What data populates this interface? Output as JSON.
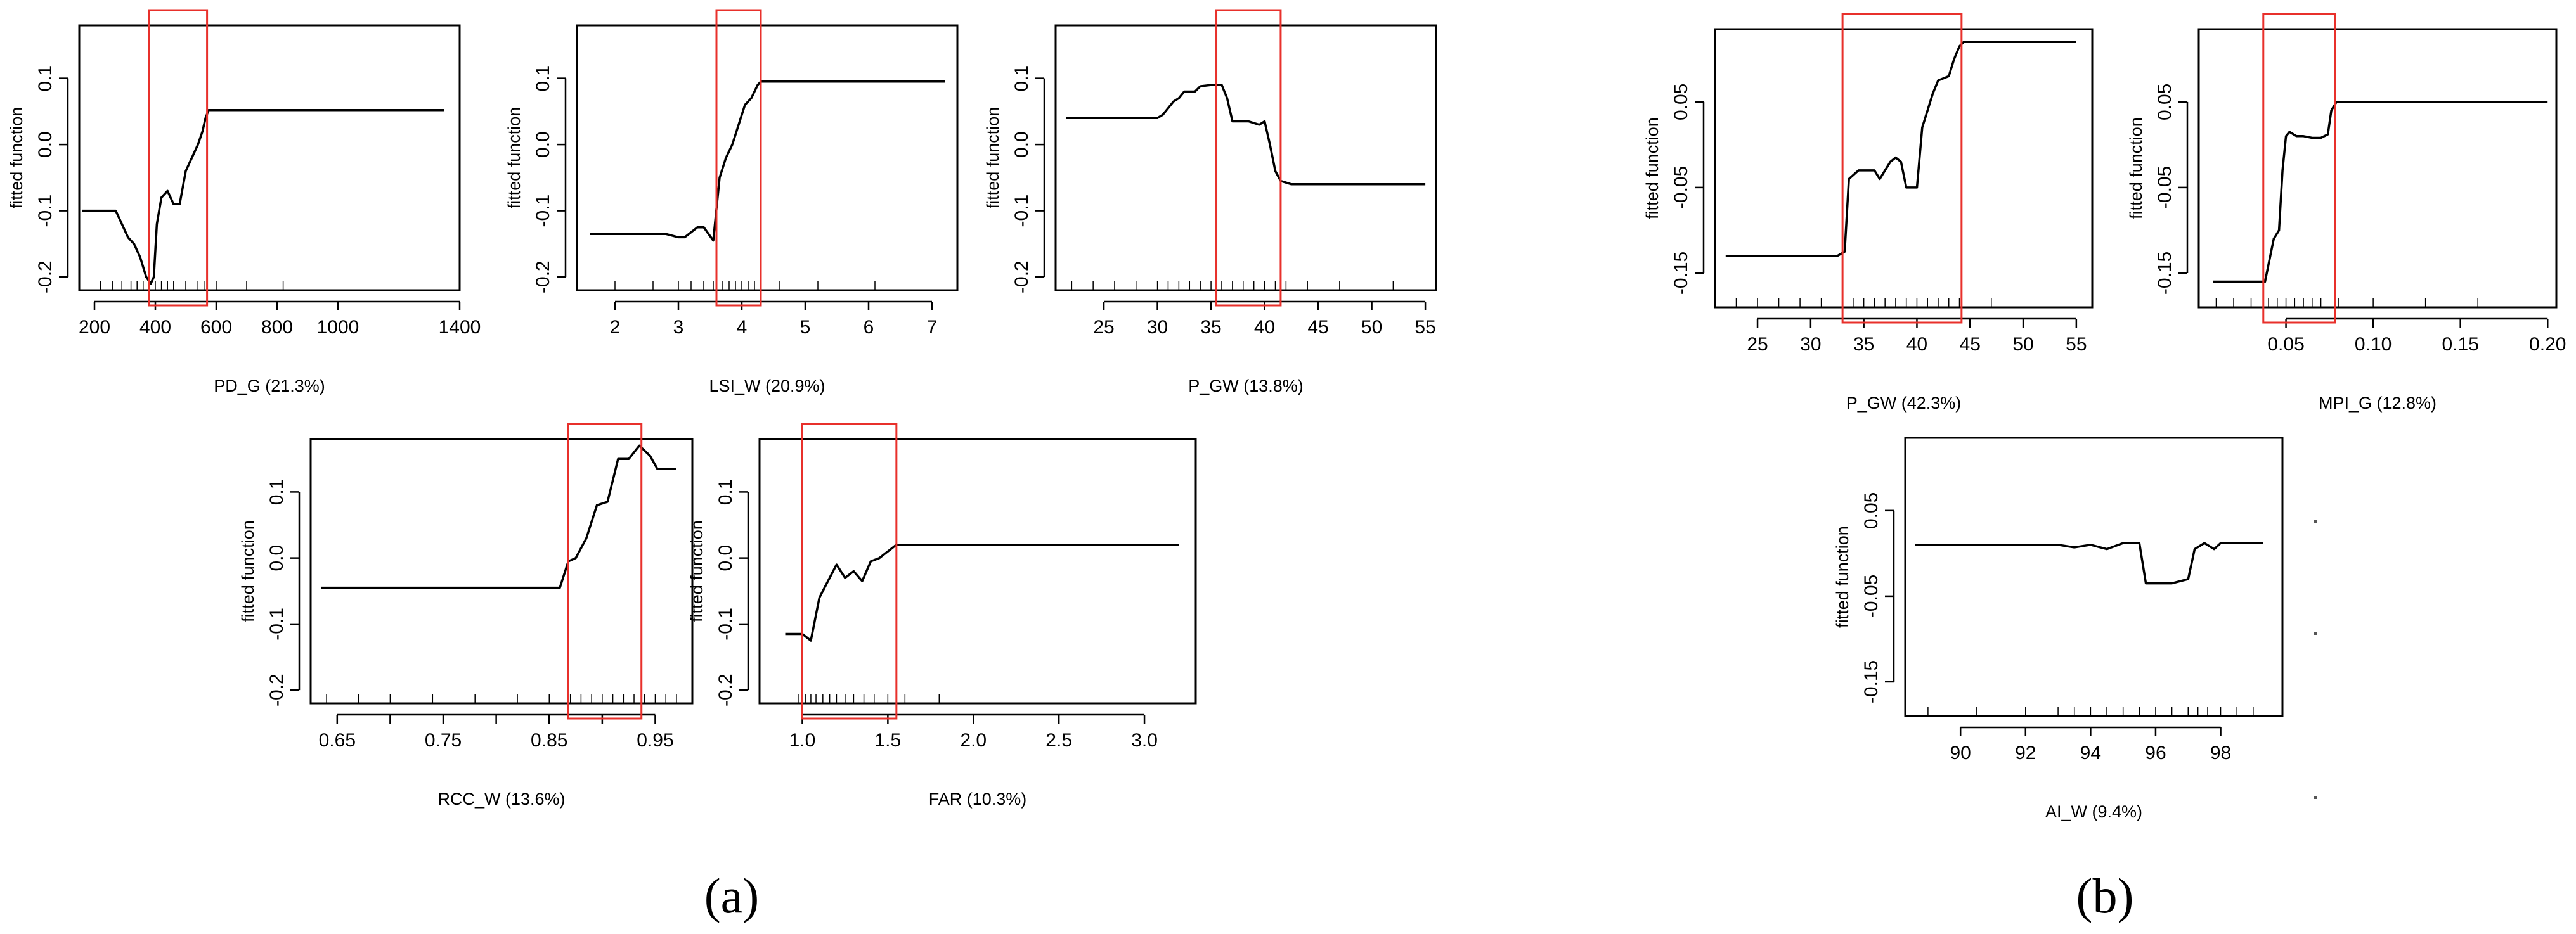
{
  "chart_data": [
    {
      "type": "line",
      "panel": "a",
      "xlabel": "PD_G  (21.3%)",
      "ylabel": "fitted function",
      "xlim": [
        150,
        1400
      ],
      "ylim": [
        -0.22,
        0.18
      ],
      "xticks": [
        200,
        400,
        600,
        800,
        1000,
        1400
      ],
      "yticks": [
        -0.2,
        -0.1,
        0.0,
        0.1
      ],
      "highlight_x": [
        380,
        570
      ],
      "x": [
        160,
        250,
        270,
        290,
        310,
        330,
        350,
        370,
        385,
        395,
        405,
        420,
        440,
        460,
        480,
        500,
        520,
        540,
        555,
        565,
        575,
        600,
        1350
      ],
      "y": [
        -0.1,
        -0.1,
        -0.1,
        -0.12,
        -0.14,
        -0.15,
        -0.17,
        -0.2,
        -0.21,
        -0.2,
        -0.12,
        -0.08,
        -0.07,
        -0.09,
        -0.09,
        -0.04,
        -0.02,
        0.0,
        0.02,
        0.04,
        0.052,
        0.052,
        0.052
      ],
      "rug": [
        220,
        260,
        290,
        320,
        340,
        360,
        380,
        400,
        420,
        440,
        460,
        500,
        540,
        560,
        600,
        700,
        820
      ]
    },
    {
      "type": "line",
      "panel": "a",
      "xlabel": "LSI_W  (20.9%)",
      "ylabel": "fitted function",
      "xlim": [
        1.4,
        7.4
      ],
      "ylim": [
        -0.22,
        0.18
      ],
      "xticks": [
        2,
        3,
        4,
        5,
        6,
        7
      ],
      "yticks": [
        -0.2,
        -0.1,
        0.0,
        0.1
      ],
      "highlight_x": [
        3.6,
        4.3
      ],
      "x": [
        1.6,
        2.8,
        3.0,
        3.1,
        3.3,
        3.4,
        3.55,
        3.65,
        3.75,
        3.85,
        3.95,
        4.05,
        4.15,
        4.25,
        4.3,
        7.2
      ],
      "y": [
        -0.135,
        -0.135,
        -0.14,
        -0.14,
        -0.125,
        -0.125,
        -0.145,
        -0.05,
        -0.02,
        0.0,
        0.03,
        0.06,
        0.07,
        0.09,
        0.095,
        0.095
      ],
      "rug": [
        2.0,
        2.6,
        3.0,
        3.2,
        3.4,
        3.55,
        3.7,
        3.8,
        3.9,
        4.0,
        4.1,
        4.2,
        4.3,
        4.6,
        5.2,
        6.1
      ]
    },
    {
      "type": "line",
      "panel": "a",
      "xlabel": "P_GW  (13.8%)",
      "ylabel": "fitted function",
      "xlim": [
        20.5,
        56
      ],
      "ylim": [
        -0.22,
        0.18
      ],
      "xticks": [
        25,
        30,
        35,
        40,
        45,
        50,
        55
      ],
      "yticks": [
        -0.2,
        -0.1,
        0.0,
        0.1
      ],
      "highlight_x": [
        35.5,
        41.5
      ],
      "x": [
        21.5,
        30.0,
        30.5,
        31.5,
        32.0,
        32.5,
        33.5,
        34.0,
        35.0,
        36.0,
        36.5,
        37.0,
        38.5,
        39.5,
        40.0,
        40.5,
        41.0,
        41.5,
        42.5,
        55.0
      ],
      "y": [
        0.04,
        0.04,
        0.045,
        0.065,
        0.07,
        0.08,
        0.08,
        0.088,
        0.09,
        0.09,
        0.07,
        0.035,
        0.035,
        0.03,
        0.035,
        0.0,
        -0.04,
        -0.055,
        -0.06,
        -0.06
      ],
      "rug": [
        22,
        24,
        26,
        28,
        30,
        31,
        32,
        33,
        34,
        35,
        36,
        37,
        38,
        39,
        40,
        41,
        42,
        44,
        47,
        52
      ]
    },
    {
      "type": "line",
      "panel": "a",
      "xlabel": "RCC_W  (13.6%)",
      "ylabel": "fitted function",
      "xlim": [
        0.625,
        0.985
      ],
      "ylim": [
        -0.22,
        0.18
      ],
      "xticks": [
        0.65,
        0.75,
        0.85,
        0.95
      ],
      "xticklabels": [
        "0.65",
        "0.75",
        "0.85",
        "0.95"
      ],
      "xtick_minor": [
        0.7,
        0.8,
        0.9
      ],
      "yticks": [
        -0.2,
        -0.1,
        0.0,
        0.1
      ],
      "highlight_x": [
        0.868,
        0.937
      ],
      "x": [
        0.635,
        0.86,
        0.868,
        0.875,
        0.885,
        0.895,
        0.905,
        0.915,
        0.925,
        0.935,
        0.945,
        0.952,
        0.97
      ],
      "y": [
        -0.045,
        -0.045,
        -0.005,
        0.0,
        0.03,
        0.08,
        0.085,
        0.15,
        0.15,
        0.17,
        0.155,
        0.135,
        0.135
      ],
      "rug": [
        0.64,
        0.67,
        0.7,
        0.74,
        0.78,
        0.82,
        0.85,
        0.87,
        0.88,
        0.89,
        0.9,
        0.91,
        0.92,
        0.93,
        0.94,
        0.95,
        0.96,
        0.97
      ]
    },
    {
      "type": "line",
      "panel": "a",
      "xlabel": "FAR  (10.3%)",
      "ylabel": "fitted function",
      "xlim": [
        0.75,
        3.3
      ],
      "ylim": [
        -0.22,
        0.18
      ],
      "xticks": [
        1.0,
        1.5,
        2.0,
        2.5,
        3.0
      ],
      "xticklabels": [
        "1.0",
        "1.5",
        "2.0",
        "2.5",
        "3.0"
      ],
      "yticks": [
        -0.2,
        -0.1,
        0.0,
        0.1
      ],
      "highlight_x": [
        1.0,
        1.55
      ],
      "x": [
        0.9,
        1.0,
        1.05,
        1.1,
        1.15,
        1.2,
        1.25,
        1.3,
        1.35,
        1.4,
        1.45,
        1.5,
        1.55,
        3.2
      ],
      "y": [
        -0.115,
        -0.115,
        -0.125,
        -0.06,
        -0.035,
        -0.01,
        -0.03,
        -0.02,
        -0.035,
        -0.005,
        0.0,
        0.01,
        0.02,
        0.02
      ],
      "rug": [
        0.98,
        1.02,
        1.05,
        1.08,
        1.12,
        1.16,
        1.2,
        1.25,
        1.3,
        1.36,
        1.42,
        1.5,
        1.6,
        1.8
      ]
    },
    {
      "type": "line",
      "panel": "b",
      "xlabel": "P_GW  (42.3%)",
      "ylabel": "fitted function",
      "xlim": [
        21,
        56.5
      ],
      "ylim": [
        -0.19,
        0.135
      ],
      "xticks": [
        25,
        30,
        35,
        40,
        45,
        50,
        55
      ],
      "yticks": [
        -0.15,
        -0.05,
        0.05
      ],
      "highlight_x": [
        33.0,
        44.2
      ],
      "x": [
        22.0,
        32.5,
        33.2,
        33.6,
        34.5,
        36.0,
        36.5,
        37.5,
        38.0,
        38.5,
        39.0,
        40.0,
        40.5,
        41.5,
        42.0,
        43.0,
        43.5,
        44.0,
        44.4,
        55.0
      ],
      "y": [
        -0.13,
        -0.13,
        -0.125,
        -0.04,
        -0.03,
        -0.03,
        -0.04,
        -0.02,
        -0.015,
        -0.02,
        -0.05,
        -0.05,
        0.02,
        0.06,
        0.075,
        0.08,
        0.1,
        0.115,
        0.12,
        0.12
      ],
      "rug": [
        23,
        25,
        27,
        29,
        31,
        33,
        34,
        35,
        36,
        37,
        38,
        39,
        40,
        41,
        42,
        43,
        44,
        47
      ]
    },
    {
      "type": "line",
      "panel": "b",
      "xlabel": "MPI_G  (12.8%)",
      "ylabel": "fitted function",
      "xlim": [
        0.0,
        0.205
      ],
      "ylim": [
        -0.19,
        0.135
      ],
      "xticks": [
        0.05,
        0.1,
        0.15,
        0.2
      ],
      "xticklabels": [
        "0.05",
        "0.10",
        "0.15",
        "0.20"
      ],
      "yticks": [
        -0.15,
        -0.05,
        0.05
      ],
      "highlight_x": [
        0.037,
        0.078
      ],
      "x": [
        0.008,
        0.038,
        0.04,
        0.043,
        0.046,
        0.048,
        0.05,
        0.052,
        0.056,
        0.06,
        0.065,
        0.07,
        0.074,
        0.076,
        0.079,
        0.2
      ],
      "y": [
        -0.16,
        -0.16,
        -0.14,
        -0.11,
        -0.1,
        -0.03,
        0.01,
        0.015,
        0.01,
        0.01,
        0.008,
        0.008,
        0.012,
        0.04,
        0.05,
        0.05
      ],
      "rug": [
        0.01,
        0.02,
        0.03,
        0.04,
        0.045,
        0.05,
        0.055,
        0.06,
        0.065,
        0.07,
        0.08,
        0.1,
        0.13,
        0.16
      ]
    },
    {
      "type": "line",
      "panel": "b",
      "xlabel": "AI_W  (9.4%)",
      "ylabel": "fitted function",
      "xlim": [
        88.3,
        99.9
      ],
      "ylim": [
        -0.19,
        0.135
      ],
      "xticks": [
        90,
        92,
        94,
        96,
        98
      ],
      "yticks": [
        -0.15,
        -0.05,
        0.05
      ],
      "x": [
        88.6,
        93.0,
        93.5,
        94.0,
        94.5,
        95.0,
        95.5,
        95.7,
        96.5,
        97.0,
        97.2,
        97.5,
        97.8,
        98.0,
        99.3
      ],
      "y": [
        0.01,
        0.01,
        0.007,
        0.01,
        0.005,
        0.012,
        0.012,
        -0.035,
        -0.035,
        -0.03,
        0.005,
        0.012,
        0.005,
        0.012,
        0.012
      ],
      "rug": [
        89,
        90.5,
        92,
        93,
        93.5,
        94,
        94.5,
        95,
        95.5,
        96,
        96.5,
        97,
        97.3,
        97.6,
        98,
        98.5,
        99
      ]
    }
  ],
  "panel_labels": {
    "a": "(a)",
    "b": "(b)"
  },
  "colors": {
    "line": "#000000",
    "highlight": "#e8302b",
    "axis": "#000000"
  }
}
